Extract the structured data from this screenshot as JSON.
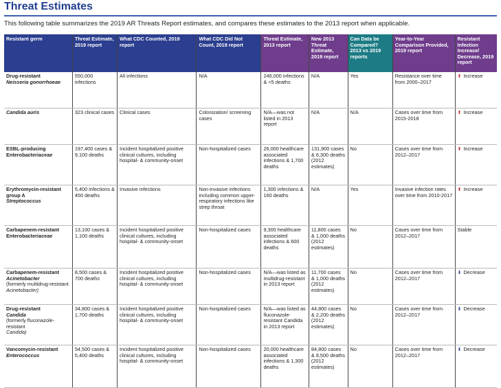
{
  "page": {
    "title": "Threat Estimates",
    "subtitle": "This following table summarizes the 2019 AR Threats Report estimates, and compares these estimates to the 2013 report when applicable."
  },
  "colors": {
    "header_blue": "#2b3e8f",
    "header_purple": "#6f3d8c",
    "header_teal": "#1c7b84",
    "increase_arrow": "#c0282d",
    "decrease_arrow": "#2b3e8f"
  },
  "table": {
    "headers": [
      "Resistant germ",
      "Threat Estimate, 2019 report",
      "What CDC Counted, 2019 report",
      "What CDC Did Not Count, 2019 report",
      "Threat Estimate, 2013 report",
      "New 2013 Threat Estimate, 2019 report",
      "Can Data be Compared? 2013 vs 2019 reports",
      "Year-to-Year Comparison Provided, 2019 report",
      "Resistant Infection Increase/ Decrease, 2019 report"
    ],
    "rows": [
      {
        "germ_a": "Drug-resistant",
        "germ_b": "Neisseria gonorrhoeae",
        "germ_c": "",
        "germ_d": "",
        "est2019": "550,000 infections",
        "counted": "All infections",
        "not_counted": "N/A",
        "est2013": "246,000 infections & <5 deaths",
        "new2013": "N/A",
        "compare": "Yes",
        "comparison": "Resistance over time from 2000–2017",
        "trend_icon": "⬆",
        "trend": "Increase"
      },
      {
        "germ_a": "",
        "germ_b": "Candida auris",
        "germ_c": "",
        "germ_d": "",
        "est2019": "323 clinical cases",
        "counted": "Clinical cases",
        "not_counted": "Colonization/ screening cases",
        "est2013": "N/A—was not listed in 2013 report",
        "new2013": "N/A",
        "compare": "N/A",
        "comparison": "Cases over time from 2015-2018",
        "trend_icon": "⬆",
        "trend": "Increase"
      },
      {
        "germ_a": "ESBL-producing Enterobacteriaceae",
        "germ_b": "",
        "germ_c": "",
        "germ_d": "",
        "est2019": "197,400 cases & 9,100 deaths",
        "counted": "Incident hospitalized positive clinical cultures, including hospital- & community-onset",
        "not_counted": "Non-hospitalized cases",
        "est2013": "26,000 healthcare associated infections & 1,700 deaths",
        "new2013": "131,900 cases & 6,300 deaths (2012 estimates)",
        "compare": "No",
        "comparison": "Cases over time from 2012–2017",
        "trend_icon": "⬆",
        "trend": "Increase"
      },
      {
        "germ_a": "Erythromycin-resistant group A",
        "germ_b": "Streptococcus",
        "germ_c": "",
        "germ_d": "",
        "est2019": "5,400 infections & 450 deaths",
        "counted": "Invasive infections",
        "not_counted": "Non-invasive infections including common upper-respiratory infections like strep throat",
        "est2013": "1,300 infections & 160 deaths",
        "new2013": "N/A",
        "compare": "Yes",
        "comparison": "Invasive infection rates over time from 2010-2017",
        "trend_icon": "⬆",
        "trend": "Increase"
      },
      {
        "germ_a": "Carbapenem-resistant Enterobacteriaceae",
        "germ_b": "",
        "germ_c": "",
        "germ_d": "",
        "est2019": "13,100 cases & 1,100 deaths",
        "counted": "Incident hospitalized positive clinical cultures, including hospital- & community-onset",
        "not_counted": "Non-hospitalized cases",
        "est2013": "9,300 healthcare associated infections & 600 deaths",
        "new2013": "11,800 cases & 1,000 deaths (2012 estimates)",
        "compare": "No",
        "comparison": "Cases over time from 2012–2017",
        "trend_icon": "",
        "trend": "Stable"
      },
      {
        "germ_a": "Carbapenem-resistant",
        "germ_b": "Acinetobacter",
        "germ_c": "(formerly multidrug-resistant",
        "germ_d": "Acinetobacter)",
        "est2019": "8,500 cases & 700 deaths",
        "counted": "Incident hospitalized positive clinical cultures, including hospital- & community-onset",
        "not_counted": "Non-hospitalized cases",
        "est2013": "N/A—was listed as multidrug-resistant in 2013 report",
        "new2013": "11,700 cases & 1,000 deaths (2012 estimates)",
        "compare": "No",
        "comparison": "Cases over time from 2012–2017",
        "trend_icon": "⬇",
        "trend": "Decrease"
      },
      {
        "germ_a": "Drug-resistant",
        "germ_b": "Candida",
        "germ_c": "(formerly fluconazole-resistant",
        "germ_d": "Candida)",
        "est2019": "34,800 cases & 1,700 deaths",
        "counted": "Incident hospitalized positive clinical cultures, including hospital- & community-onset",
        "not_counted": "Non-hospitalized cases",
        "est2013": "N/A—was listed as fluconazole-resistant Candida in 2013 report",
        "new2013": "44,800 cases & 2,200 deaths (2012 estimates)",
        "compare": "No",
        "comparison": "Cases over time from 2012–2017",
        "trend_icon": "⬇",
        "trend": "Decrease"
      },
      {
        "germ_a": "Vancomycin-resistant",
        "germ_b": "Enterococcus",
        "germ_c": "",
        "germ_d": "",
        "est2019": "54,500 cases & 5,400 deaths",
        "counted": "Incident hospitalized positive clinical cultures, including hospital- & community-onset",
        "not_counted": "Non-hospitalized cases",
        "est2013": "20,000 healthcare associated infections & 1,300 deaths",
        "new2013": "84,800 cases & 8,500 deaths (2012 estimates)",
        "compare": "No",
        "comparison": "Cases over time from 2012–2017",
        "trend_icon": "⬇",
        "trend": "Decrease"
      }
    ]
  }
}
